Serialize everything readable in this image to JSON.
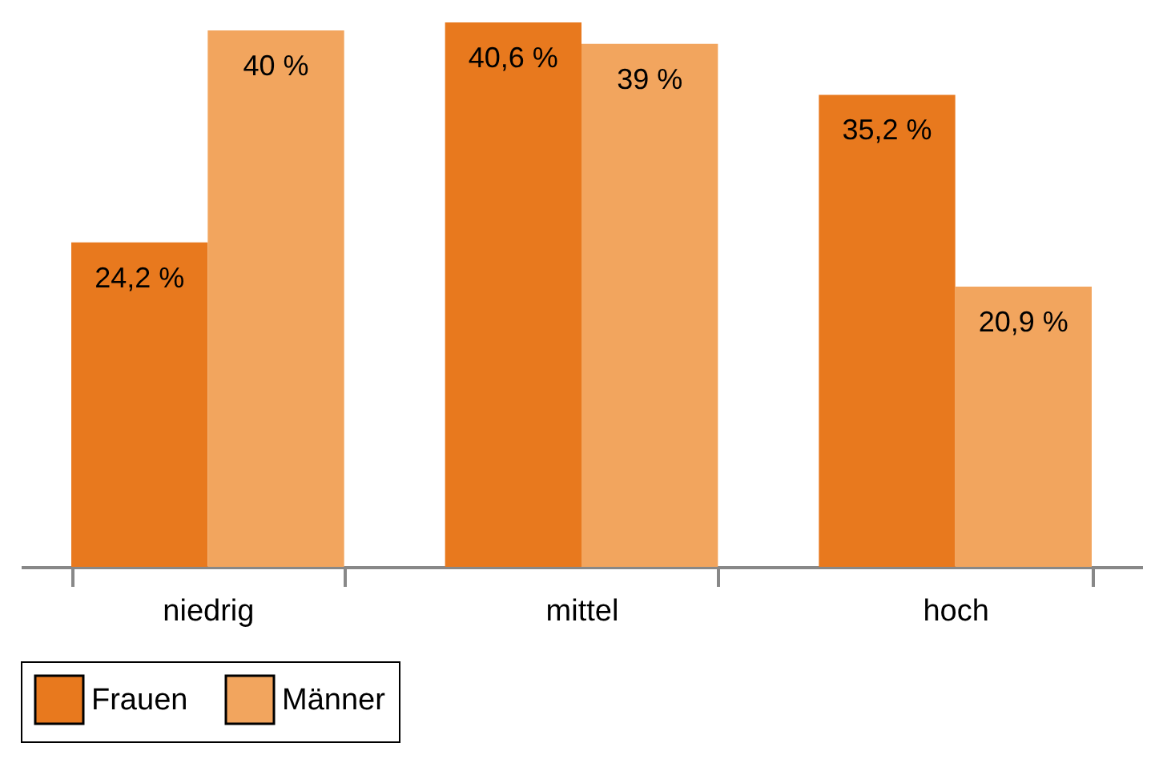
{
  "chart_data": {
    "type": "bar",
    "categories": [
      "niedrig",
      "mittel",
      "hoch"
    ],
    "series": [
      {
        "name": "Frauen",
        "color": "#e8791e",
        "values": [
          24.2,
          40.6,
          35.2
        ],
        "value_labels": [
          "24,2 %",
          "40,6 %",
          "35,2 %"
        ]
      },
      {
        "name": "Männer",
        "color": "#f2a55e",
        "values": [
          40,
          39,
          20.9
        ],
        "value_labels": [
          "40 %",
          "39 %",
          "20,9 %"
        ]
      }
    ],
    "legend": "bottom left",
    "grid": false
  }
}
